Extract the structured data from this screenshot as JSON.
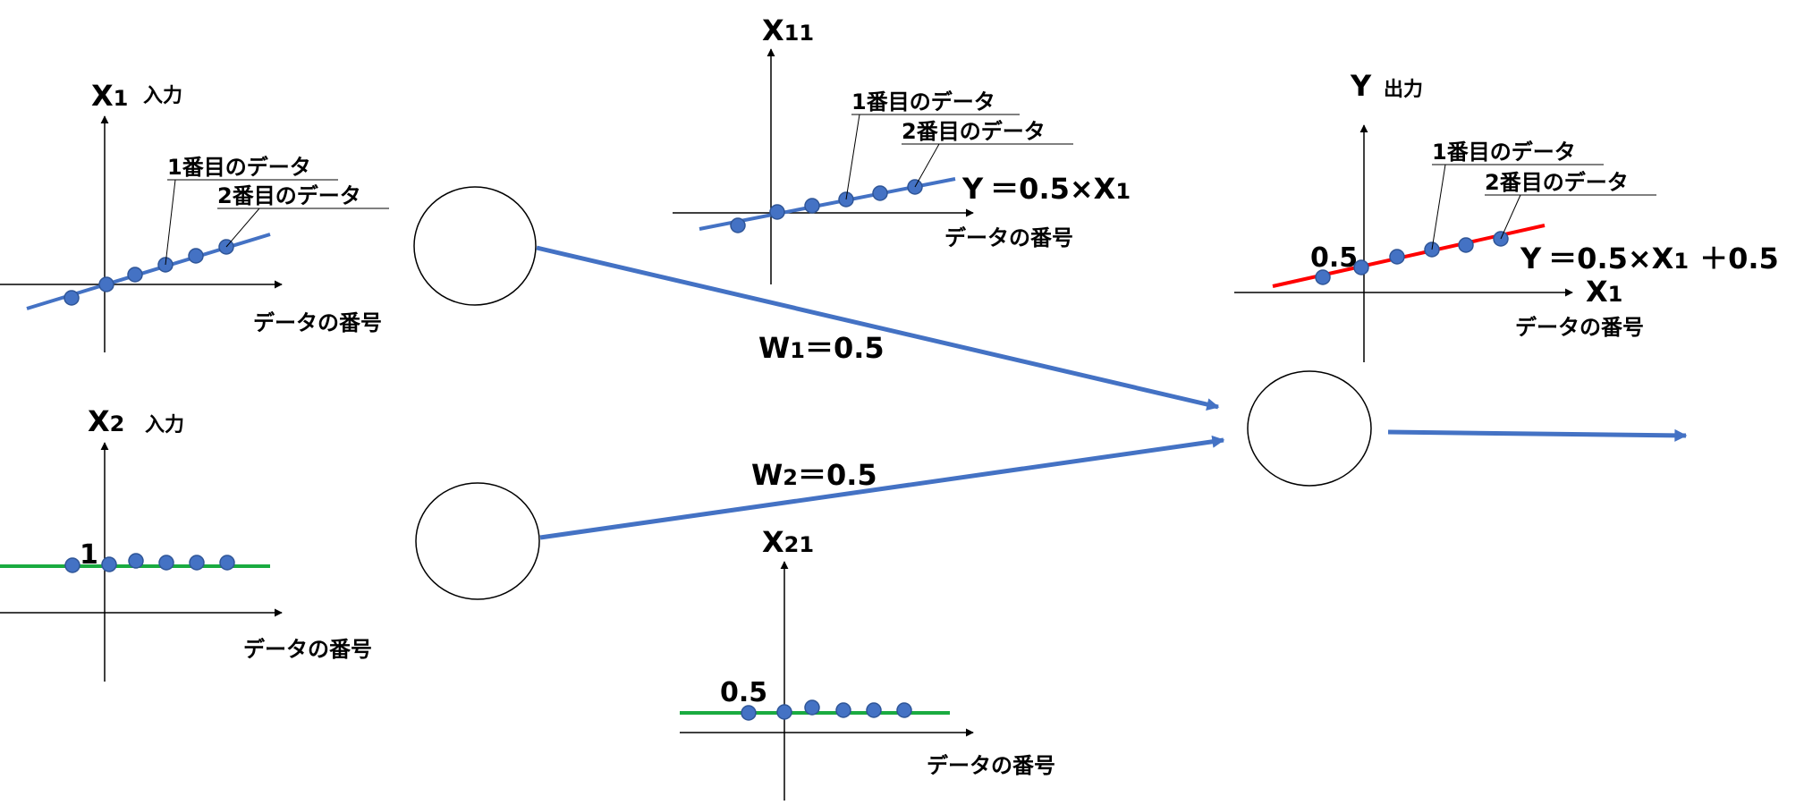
{
  "colors": {
    "blue_line": "#4472c4",
    "blue_dot_fill": "#4472c4",
    "blue_dot_stroke": "#2f5597",
    "green_line": "#1aab40",
    "red_line": "#ff0000",
    "axis": "#000000"
  },
  "x1_plot": {
    "axis_var": "X",
    "axis_sub": "1",
    "axis_note": "入力",
    "first_label": "1番目のデータ",
    "second_label": "2番目のデータ",
    "x_label": "データの番号"
  },
  "x2_plot": {
    "axis_var": "X",
    "axis_sub": "2",
    "axis_note": "入力",
    "value_label": "1",
    "x_label": "データの番号"
  },
  "x11_plot": {
    "axis_var": "X",
    "axis_sub": "11",
    "first_label": "1番目のデータ",
    "second_label": "2番目のデータ",
    "equation_y": "Y",
    "equation_rest": "＝0.5×X",
    "equation_sub": "1",
    "x_label": "データの番号"
  },
  "x21_plot": {
    "axis_var": "X",
    "axis_sub": "21",
    "value_label": "0.5",
    "x_label": "データの番号"
  },
  "y_plot": {
    "axis_var": "Y",
    "axis_note": "出力",
    "first_label": "1番目のデータ",
    "second_label": "2番目のデータ",
    "intercept_label": "0.5",
    "equation_y": "Y",
    "equation_rest": "＝0.5×X",
    "equation_sub": "1",
    "equation_tail": "＋0.5",
    "x_axis_var": "X",
    "x_axis_sub": "1",
    "x_label": "データの番号"
  },
  "weights": {
    "w1_var": "W",
    "w1_sub": "1",
    "w1_rest": "＝0.5",
    "w2_var": "W",
    "w2_sub": "2",
    "w2_rest": "＝0.5"
  }
}
